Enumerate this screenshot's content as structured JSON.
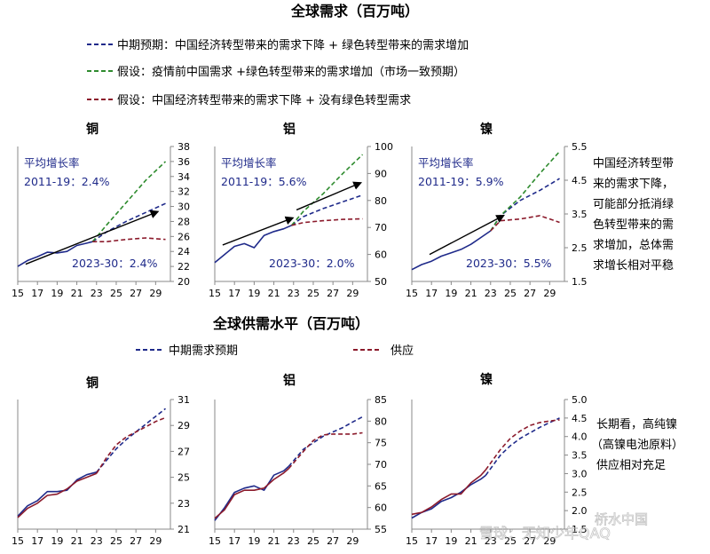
{
  "top": {
    "title": "全球需求（百万吨）",
    "legend": [
      {
        "label": "中期预期：中国经济转型带来的需求下降 + 绿色转型带来的需求增加",
        "color": "#1F2A8A"
      },
      {
        "label": "假设：疫情前中国需求 +绿色转型带来的需求增加（市场一致预期）",
        "color": "#2E8B2E"
      },
      {
        "label": "假设：中国经济转型带来的需求下降 + 没有绿色转型需求",
        "color": "#8B1A2B"
      }
    ],
    "side_note": [
      "中国经济转型带",
      "来的需求下降，",
      "可能部分抵消绿",
      "色转型带来的需",
      "求增加，总体需",
      "求增长相对平稳"
    ]
  },
  "bottom": {
    "title": "全球供需水平（百万吨）",
    "legend": [
      {
        "label": "中期需求预期",
        "color": "#1F2A8A"
      },
      {
        "label": "供应",
        "color": "#8B1A2B"
      }
    ],
    "side_note": [
      "长期看，高纯镍",
      "（高镍电池原料）",
      "供应相对充足"
    ]
  },
  "watermark": "雪球：无知少年QAQ",
  "watermark2": "桥水中国",
  "chart_data": [
    {
      "type": "line",
      "title": "铜",
      "xlabel": "",
      "ylabel": "",
      "xlim": [
        15,
        30.5
      ],
      "ylim": [
        20,
        38
      ],
      "xticks": [
        "15",
        "17",
        "19",
        "21",
        "23",
        "25",
        "27",
        "29"
      ],
      "yticks": [
        "20",
        "22",
        "24",
        "26",
        "28",
        "30",
        "32",
        "34",
        "36",
        "38"
      ],
      "annotations": {
        "header": "平均增长率",
        "hist": "2011-19：2.4%",
        "fwd": "2023-30：2.4%"
      },
      "arrow": {
        "from": [
          15.8,
          22.3
        ],
        "to": [
          29.2,
          29.3
        ]
      },
      "series": [
        {
          "name": "",
          "style": "solid",
          "color": "#1F2A8A",
          "x": [
            15,
            16,
            17,
            18,
            19,
            20,
            21,
            22,
            22.6
          ],
          "y": [
            22.0,
            22.8,
            23.3,
            23.9,
            23.8,
            24.0,
            24.8,
            25.1,
            25.3
          ]
        },
        {
          "name": "",
          "style": "dashed",
          "color": "#1F2A8A",
          "x": [
            22.6,
            24,
            26,
            28,
            30
          ],
          "y": [
            25.3,
            26.6,
            28.0,
            29.2,
            30.4
          ]
        },
        {
          "name": "",
          "style": "dashed",
          "color": "#2E8B2E",
          "x": [
            22.6,
            24,
            26,
            28,
            30
          ],
          "y": [
            25.3,
            27.5,
            30.5,
            33.5,
            36.0
          ]
        },
        {
          "name": "",
          "style": "dashed",
          "color": "#8B1A2B",
          "x": [
            22.6,
            24,
            26,
            28,
            30
          ],
          "y": [
            25.3,
            25.3,
            25.6,
            25.8,
            25.6
          ]
        }
      ]
    },
    {
      "type": "line",
      "title": "铝",
      "xlabel": "",
      "ylabel": "",
      "xlim": [
        15,
        30.5
      ],
      "ylim": [
        50,
        100
      ],
      "xticks": [
        "15",
        "17",
        "19",
        "21",
        "23",
        "25",
        "27",
        "29"
      ],
      "yticks": [
        "50",
        "60",
        "70",
        "80",
        "90",
        "100"
      ],
      "annotations": {
        "header": "平均增长率",
        "hist": "2011-19：5.6%",
        "fwd": "2023-30：2.0%"
      },
      "arrow": {
        "from": [
          15.8,
          63.5
        ],
        "to": [
          22.9,
          73.5
        ]
      },
      "arrow2": {
        "from": [
          23.3,
          76.5
        ],
        "to": [
          29.8,
          86.5
        ]
      },
      "series": [
        {
          "name": "",
          "style": "solid",
          "color": "#1F2A8A",
          "x": [
            15,
            16,
            17,
            18,
            19,
            20,
            21,
            22,
            22.8
          ],
          "y": [
            57.0,
            60.0,
            63.0,
            64.0,
            62.5,
            67.0,
            68.5,
            69.5,
            70.8
          ]
        },
        {
          "name": "",
          "style": "dashed",
          "color": "#1F2A8A",
          "x": [
            22.8,
            24,
            26,
            28,
            30
          ],
          "y": [
            70.8,
            74.0,
            77.0,
            79.5,
            82.0
          ]
        },
        {
          "name": "",
          "style": "dashed",
          "color": "#2E8B2E",
          "x": [
            22.8,
            24,
            26,
            28,
            30
          ],
          "y": [
            70.8,
            76.0,
            82.5,
            90.0,
            97.0
          ]
        },
        {
          "name": "",
          "style": "dashed",
          "color": "#8B1A2B",
          "x": [
            22.8,
            24,
            26,
            28,
            30
          ],
          "y": [
            70.8,
            71.8,
            72.5,
            73.0,
            73.2
          ]
        }
      ]
    },
    {
      "type": "line",
      "title": "镍",
      "xlabel": "",
      "ylabel": "",
      "xlim": [
        15,
        30.5
      ],
      "ylim": [
        1.5,
        5.5
      ],
      "xticks": [
        "15",
        "17",
        "19",
        "21",
        "23",
        "25",
        "27",
        "29"
      ],
      "yticks": [
        "1.5",
        "2.5",
        "3.5",
        "4.5",
        "5.5"
      ],
      "annotations": {
        "header": "平均增长率",
        "hist": "2011-19：5.9%",
        "fwd": "2023-30：5.5%"
      },
      "arrow": {
        "from": [
          16.8,
          2.3
        ],
        "to": [
          24.3,
          3.45
        ]
      },
      "series": [
        {
          "name": "",
          "style": "solid",
          "color": "#1F2A8A",
          "x": [
            15,
            16,
            17,
            18,
            19,
            20,
            21,
            22,
            23
          ],
          "y": [
            1.85,
            2.0,
            2.1,
            2.25,
            2.35,
            2.45,
            2.6,
            2.8,
            3.0
          ]
        },
        {
          "name": "",
          "style": "dashed",
          "color": "#1F2A8A",
          "x": [
            23,
            24,
            26,
            28,
            30
          ],
          "y": [
            3.0,
            3.45,
            3.9,
            4.2,
            4.55
          ]
        },
        {
          "name": "",
          "style": "dashed",
          "color": "#2E8B2E",
          "x": [
            23,
            24,
            26,
            28,
            30
          ],
          "y": [
            3.0,
            3.45,
            4.0,
            4.7,
            5.35
          ]
        },
        {
          "name": "",
          "style": "dashed",
          "color": "#8B1A2B",
          "x": [
            23,
            24,
            26,
            28,
            30
          ],
          "y": [
            3.0,
            3.3,
            3.35,
            3.45,
            3.25
          ]
        }
      ]
    },
    {
      "type": "line",
      "title": "铜",
      "xlabel": "",
      "ylabel": "",
      "xlim": [
        15,
        30.5
      ],
      "ylim": [
        21,
        31
      ],
      "xticks": [
        "15",
        "17",
        "19",
        "21",
        "23",
        "25",
        "27",
        "29"
      ],
      "yticks": [
        "21",
        "23",
        "25",
        "27",
        "29",
        "31"
      ],
      "series": [
        {
          "name": "中期需求预期",
          "style": "solid",
          "color": "#1F2A8A",
          "x": [
            15,
            16,
            17,
            18,
            19,
            20,
            21,
            22,
            23
          ],
          "y": [
            22.0,
            22.8,
            23.2,
            23.9,
            23.9,
            24.0,
            24.8,
            25.2,
            25.4
          ]
        },
        {
          "name": "中期需求预期",
          "style": "dashed",
          "color": "#1F2A8A",
          "x": [
            23,
            24,
            25,
            26,
            27,
            28,
            29,
            30
          ],
          "y": [
            25.4,
            26.3,
            27.2,
            27.9,
            28.5,
            29.1,
            29.7,
            30.3
          ]
        },
        {
          "name": "供应",
          "style": "solid",
          "color": "#8B1A2B",
          "x": [
            15,
            16,
            17,
            18,
            19,
            20,
            21,
            22,
            23
          ],
          "y": [
            21.9,
            22.6,
            23.0,
            23.6,
            23.7,
            24.1,
            24.7,
            25.0,
            25.3
          ]
        },
        {
          "name": "供应",
          "style": "dashed",
          "color": "#8B1A2B",
          "x": [
            23,
            24,
            25,
            26,
            27,
            28,
            29,
            30
          ],
          "y": [
            25.3,
            26.5,
            27.5,
            28.1,
            28.5,
            28.9,
            29.3,
            29.6
          ]
        }
      ]
    },
    {
      "type": "line",
      "title": "铝",
      "xlabel": "",
      "ylabel": "",
      "xlim": [
        15,
        30.5
      ],
      "ylim": [
        55,
        85
      ],
      "xticks": [
        "15",
        "17",
        "19",
        "21",
        "23",
        "25",
        "27",
        "29"
      ],
      "yticks": [
        "55",
        "60",
        "65",
        "70",
        "75",
        "80",
        "85"
      ],
      "series": [
        {
          "name": "中期需求预期",
          "style": "solid",
          "color": "#1F2A8A",
          "x": [
            15,
            16,
            17,
            18,
            19,
            20,
            21,
            22,
            22.5
          ],
          "y": [
            57.0,
            60.0,
            63.5,
            64.5,
            65.0,
            64.0,
            67.5,
            68.5,
            69.5
          ]
        },
        {
          "name": "中期需求预期",
          "style": "dashed",
          "color": "#1F2A8A",
          "x": [
            22.5,
            24,
            25,
            26,
            27,
            28,
            29,
            30
          ],
          "y": [
            69.5,
            73.5,
            75.0,
            76.5,
            77.5,
            78.5,
            79.8,
            81.0
          ]
        },
        {
          "name": "供应",
          "style": "solid",
          "color": "#8B1A2B",
          "x": [
            15,
            16,
            17,
            18,
            19,
            20,
            21,
            22,
            22.5
          ],
          "y": [
            57.5,
            59.5,
            63.0,
            64.0,
            64.0,
            64.5,
            66.5,
            68.0,
            69.0
          ]
        },
        {
          "name": "供应",
          "style": "dashed",
          "color": "#8B1A2B",
          "x": [
            22.5,
            24,
            25,
            26,
            27,
            28,
            29,
            30
          ],
          "y": [
            69.0,
            73.0,
            75.5,
            76.8,
            77.0,
            77.0,
            77.0,
            77.3
          ]
        }
      ]
    },
    {
      "type": "line",
      "title": "镍",
      "xlabel": "",
      "ylabel": "",
      "xlim": [
        15,
        30.5
      ],
      "ylim": [
        1.5,
        5.0
      ],
      "xticks": [
        "15",
        "17",
        "19",
        "21",
        "23",
        "25",
        "27",
        "29"
      ],
      "yticks": [
        "1.5",
        "2.0",
        "2.5",
        "3.0",
        "3.5",
        "4.0",
        "4.5",
        "5.0"
      ],
      "series": [
        {
          "name": "中期需求预期",
          "style": "solid",
          "color": "#1F2A8A",
          "x": [
            15,
            16,
            17,
            18,
            19,
            20,
            21,
            22,
            22.5
          ],
          "y": [
            1.8,
            1.95,
            2.05,
            2.25,
            2.35,
            2.5,
            2.7,
            2.85,
            2.95
          ]
        },
        {
          "name": "中期需求预期",
          "style": "dashed",
          "color": "#1F2A8A",
          "x": [
            22.5,
            24,
            25,
            26,
            27,
            28,
            29,
            30
          ],
          "y": [
            2.95,
            3.5,
            3.75,
            3.95,
            4.1,
            4.25,
            4.38,
            4.5
          ]
        },
        {
          "name": "供应",
          "style": "solid",
          "color": "#8B1A2B",
          "x": [
            15,
            16,
            17,
            18,
            19,
            20,
            21,
            22,
            22.5
          ],
          "y": [
            1.9,
            1.95,
            2.1,
            2.3,
            2.45,
            2.45,
            2.75,
            2.95,
            3.1
          ]
        },
        {
          "name": "供应",
          "style": "dashed",
          "color": "#8B1A2B",
          "x": [
            22.5,
            24,
            25,
            26,
            27,
            28,
            29,
            30
          ],
          "y": [
            3.1,
            3.65,
            3.95,
            4.15,
            4.3,
            4.38,
            4.42,
            4.45
          ]
        }
      ]
    }
  ]
}
